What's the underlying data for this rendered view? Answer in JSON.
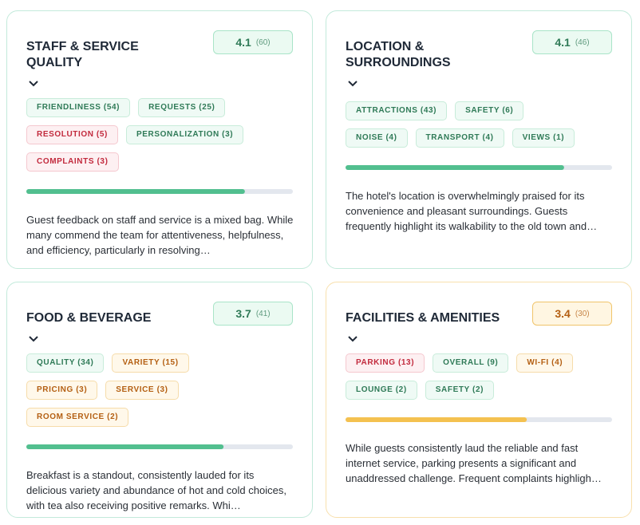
{
  "cards": [
    {
      "title": "STAFF & SERVICE QUALITY",
      "score": 4.1,
      "reviews": "(60)",
      "score_range": [
        0,
        5
      ],
      "color": "green",
      "tags": [
        {
          "text": "FRIENDLINESS (54)",
          "color": "green"
        },
        {
          "text": "REQUESTS (25)",
          "color": "green"
        },
        {
          "text": "RESOLUTION (5)",
          "color": "red"
        },
        {
          "text": "PERSONALIZATION (3)",
          "color": "green"
        },
        {
          "text": "COMPLAINTS (3)",
          "color": "red"
        }
      ],
      "summary": "Guest feedback on staff and service is a mixed bag. While many commend the team for attentiveness, helpfulness, and efficiency, particularly in resolving…"
    },
    {
      "title": "LOCATION & SURROUNDINGS",
      "score": 4.1,
      "reviews": "(46)",
      "score_range": [
        0,
        5
      ],
      "color": "green",
      "tags": [
        {
          "text": "ATTRACTIONS (43)",
          "color": "green"
        },
        {
          "text": "SAFETY (6)",
          "color": "green"
        },
        {
          "text": "NOISE (4)",
          "color": "green"
        },
        {
          "text": "TRANSPORT (4)",
          "color": "green"
        },
        {
          "text": "VIEWS (1)",
          "color": "green"
        }
      ],
      "summary": "The hotel's location is overwhelmingly praised for its convenience and pleasant surroundings. Guests frequently highlight its walkability to the old town and…"
    },
    {
      "title": "FOOD & BEVERAGE",
      "score": 3.7,
      "reviews": "(41)",
      "score_range": [
        0,
        5
      ],
      "color": "green",
      "tags": [
        {
          "text": "QUALITY (34)",
          "color": "green"
        },
        {
          "text": "VARIETY (15)",
          "color": "amber"
        },
        {
          "text": "PRICING (3)",
          "color": "amber"
        },
        {
          "text": "SERVICE (3)",
          "color": "amber"
        },
        {
          "text": "ROOM SERVICE (2)",
          "color": "amber"
        }
      ],
      "summary": "Breakfast is a standout, consistently lauded for its delicious variety and abundance of hot and cold choices, with tea also receiving positive remarks. Whi…"
    },
    {
      "title": "FACILITIES & AMENITIES",
      "score": 3.4,
      "reviews": "(30)",
      "score_range": [
        0,
        5
      ],
      "color": "amber",
      "tags": [
        {
          "text": "PARKING (13)",
          "color": "red"
        },
        {
          "text": "OVERALL (9)",
          "color": "green"
        },
        {
          "text": "WI-FI (4)",
          "color": "amber"
        },
        {
          "text": "LOUNGE (2)",
          "color": "green"
        },
        {
          "text": "SAFETY (2)",
          "color": "green"
        }
      ],
      "summary": "While guests consistently laud the reliable and fast internet service, parking presents a significant and unaddressed challenge. Frequent complaints highligh…"
    }
  ]
}
